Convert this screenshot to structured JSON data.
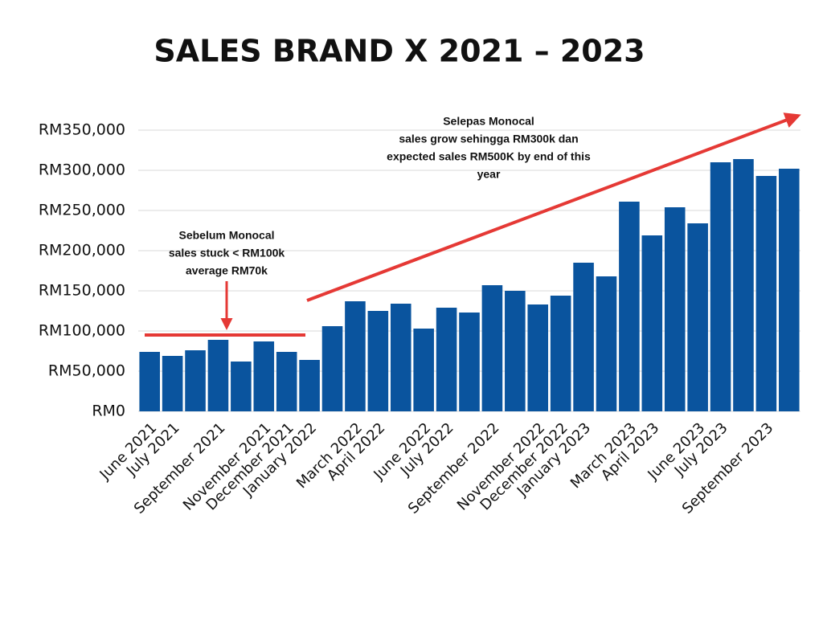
{
  "chart_data": {
    "type": "bar",
    "title": "SALES BRAND X 2021 – 2023",
    "categories": [
      "June 2021",
      "July 2021",
      null,
      "September 2021",
      null,
      "November 2021",
      "December 2021",
      "January 2022",
      null,
      "March 2022",
      "April 2022",
      null,
      "June 2022",
      "July 2022",
      null,
      "September 2022",
      null,
      "November 2022",
      "December 2022",
      "January 2023",
      null,
      "March 2023",
      "April 2023",
      null,
      "June 2023",
      "July 2023",
      null,
      "September 2023",
      null
    ],
    "values": [
      74000,
      69000,
      76000,
      89000,
      62000,
      87000,
      74000,
      64000,
      106000,
      137000,
      125000,
      134000,
      103000,
      129000,
      123000,
      157000,
      150000,
      133000,
      144000,
      185000,
      168000,
      261000,
      219000,
      254000,
      234000,
      310000,
      314000,
      293000,
      302000
    ],
    "color": "#0a549e",
    "ylim": [
      0,
      350000
    ],
    "yticks": [
      {
        "value": 0,
        "label": "RM0"
      },
      {
        "value": 50000,
        "label": "RM50,000"
      },
      {
        "value": 100000,
        "label": "RM100,000"
      },
      {
        "value": 150000,
        "label": "RM150,000"
      },
      {
        "value": 200000,
        "label": "RM200,000"
      },
      {
        "value": 250000,
        "label": "RM250,000"
      },
      {
        "value": 300000,
        "label": "RM300,000"
      },
      {
        "value": 350000,
        "label": "RM350,000"
      }
    ],
    "grid": true,
    "annotations": [
      {
        "lines": [
          "Sebelum Monocal",
          "sales stuck < RM100k",
          "average RM70k"
        ]
      },
      {
        "lines": [
          "Selepas Monocal",
          "sales grow sehingga RM300k dan",
          "expected sales RM500K by end of this",
          "year"
        ]
      }
    ]
  }
}
